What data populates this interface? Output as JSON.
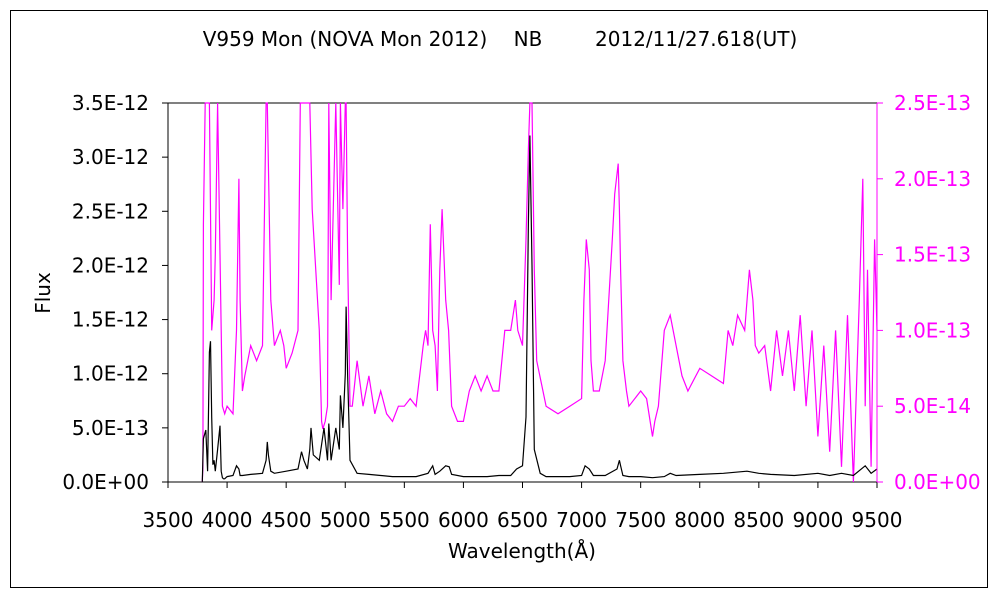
{
  "chart_data": {
    "type": "line",
    "title": "V959 Mon (NOVA Mon 2012)　 NB　 　 2012/11/27.618(UT)",
    "xlabel": "Wavelength(Å)",
    "ylabel": "Flux",
    "xlim": [
      3500,
      9500
    ],
    "ylim_left": [
      0,
      3.5e-12
    ],
    "ylim_right": [
      0,
      2.5e-13
    ],
    "x_ticks": [
      "3500",
      "4000",
      "4500",
      "5000",
      "5500",
      "6000",
      "6500",
      "7000",
      "7500",
      "8000",
      "8500",
      "9000",
      "9500"
    ],
    "y_ticks_left": [
      "0.0E+00",
      "5.0E-13",
      "1.0E-12",
      "1.5E-12",
      "2.0E-12",
      "2.5E-12",
      "3.0E-12",
      "3.5E-12"
    ],
    "y_ticks_right": [
      "0.0E+00",
      "5.0E-14",
      "1.0E-13",
      "1.5E-13",
      "2.0E-13",
      "2.5E-13"
    ],
    "grid": false,
    "legend": "none",
    "series": [
      {
        "axis": "left",
        "color": "#000000",
        "x": [
          3790,
          3800,
          3820,
          3835,
          3850,
          3860,
          3870,
          3880,
          3890,
          3900,
          3920,
          3940,
          3950,
          3960,
          3970,
          3980,
          4000,
          4050,
          4080,
          4100,
          4110,
          4130,
          4200,
          4300,
          4330,
          4340,
          4350,
          4370,
          4400,
          4500,
          4600,
          4630,
          4650,
          4680,
          4700,
          4710,
          4730,
          4780,
          4820,
          4850,
          4861,
          4880,
          4920,
          4950,
          4959,
          4980,
          5000,
          5007,
          5020,
          5040,
          5100,
          5200,
          5300,
          5400,
          5500,
          5600,
          5700,
          5740,
          5760,
          5800,
          5850,
          5880,
          5900,
          6000,
          6100,
          6200,
          6300,
          6400,
          6450,
          6500,
          6530,
          6550,
          6563,
          6580,
          6600,
          6650,
          6700,
          6800,
          6900,
          7000,
          7030,
          7065,
          7100,
          7200,
          7300,
          7320,
          7330,
          7350,
          7400,
          7500,
          7600,
          7700,
          7750,
          7800,
          8000,
          8200,
          8400,
          8500,
          8600,
          8800,
          9000,
          9100,
          9200,
          9300,
          9400,
          9450,
          9500
        ],
        "y": [
          0,
          4e-13,
          4.8e-13,
          1e-13,
          1.2e-12,
          1.3e-12,
          6e-13,
          1.6e-13,
          2e-13,
          1e-13,
          3e-13,
          5.2e-13,
          1e-13,
          4e-14,
          3e-14,
          3e-14,
          5e-14,
          6e-14,
          1.5e-13,
          1.2e-13,
          6e-14,
          6e-14,
          7e-14,
          8e-14,
          2e-13,
          3.7e-13,
          2.5e-13,
          1e-13,
          8e-14,
          1e-13,
          1.2e-13,
          2.8e-13,
          2e-13,
          1.2e-13,
          3e-13,
          5e-13,
          2.5e-13,
          2e-13,
          5e-13,
          2e-13,
          5.4e-13,
          2e-13,
          5e-13,
          3e-13,
          8e-13,
          5e-13,
          1e-12,
          1.62e-12,
          1e-12,
          2e-13,
          8e-14,
          7e-14,
          6e-14,
          5e-14,
          5e-14,
          5e-14,
          8e-14,
          1.5e-13,
          7e-14,
          1e-13,
          1.5e-13,
          1.4e-13,
          7e-14,
          5e-14,
          5e-14,
          5e-14,
          6e-14,
          6e-14,
          1.2e-13,
          1.5e-13,
          6e-13,
          2.4e-12,
          3.2e-12,
          2e-12,
          3e-13,
          8e-14,
          5e-14,
          5e-14,
          5e-14,
          6e-14,
          1.5e-13,
          1.2e-13,
          6e-14,
          6e-14,
          1.2e-13,
          2e-13,
          1.5e-13,
          6e-14,
          5e-14,
          5e-14,
          4e-14,
          5e-14,
          8e-14,
          6e-14,
          7e-14,
          8e-14,
          1e-13,
          8e-14,
          7e-14,
          6e-14,
          8e-14,
          6e-14,
          8e-14,
          6e-14,
          1.5e-13,
          8e-14,
          1.2e-13
        ]
      },
      {
        "axis": "right",
        "color": "#ff00ff",
        "x": [
          3790,
          3795,
          3800,
          3815,
          3830,
          3850,
          3870,
          3890,
          3900,
          3920,
          3950,
          3960,
          3980,
          4000,
          4050,
          4080,
          4100,
          4110,
          4130,
          4150,
          4200,
          4250,
          4300,
          4330,
          4340,
          4370,
          4400,
          4450,
          4480,
          4500,
          4550,
          4600,
          4620,
          4650,
          4700,
          4720,
          4780,
          4800,
          4810,
          4830,
          4850,
          4861,
          4880,
          4920,
          4950,
          4959,
          4980,
          5000,
          5007,
          5020,
          5040,
          5060,
          5100,
          5150,
          5200,
          5250,
          5300,
          5350,
          5400,
          5450,
          5500,
          5550,
          5600,
          5660,
          5680,
          5700,
          5720,
          5740,
          5760,
          5780,
          5800,
          5820,
          5850,
          5875,
          5890,
          5900,
          5950,
          6000,
          6050,
          6100,
          6150,
          6200,
          6250,
          6300,
          6350,
          6400,
          6440,
          6460,
          6500,
          6530,
          6550,
          6563,
          6580,
          6600,
          6620,
          6700,
          6800,
          6900,
          7000,
          7020,
          7040,
          7065,
          7080,
          7100,
          7150,
          7200,
          7260,
          7280,
          7310,
          7320,
          7330,
          7350,
          7380,
          7400,
          7500,
          7550,
          7600,
          7620,
          7650,
          7700,
          7750,
          7800,
          7850,
          7900,
          8000,
          8100,
          8200,
          8240,
          8280,
          8320,
          8380,
          8420,
          8450,
          8470,
          8500,
          8550,
          8600,
          8650,
          8700,
          8750,
          8800,
          8850,
          8900,
          8950,
          9000,
          9050,
          9100,
          9150,
          9200,
          9250,
          9300,
          9350,
          9380,
          9400,
          9420,
          9450,
          9480,
          9500
        ],
        "y": [
          0,
          1e-14,
          1.7e-13,
          2.5e-13,
          2.5e-13,
          2.5e-13,
          1e-13,
          1.2e-13,
          1.5e-13,
          2.5e-13,
          1e-13,
          5e-14,
          4.5e-14,
          5e-14,
          4.5e-14,
          1e-13,
          2e-13,
          1.2e-13,
          6e-14,
          7e-14,
          9e-14,
          8e-14,
          9e-14,
          2.5e-13,
          2.5e-13,
          1.2e-13,
          9e-14,
          1e-13,
          9e-14,
          7.5e-14,
          8.5e-14,
          1e-13,
          2.5e-13,
          2.5e-13,
          2.5e-13,
          1.8e-13,
          1e-13,
          4e-14,
          3.5e-14,
          4e-14,
          5e-14,
          2.5e-13,
          1.2e-13,
          2.5e-13,
          1.3e-13,
          2.5e-13,
          1.8e-13,
          2.5e-13,
          2.5e-13,
          1.5e-13,
          5e-14,
          5e-14,
          8e-14,
          5e-14,
          7e-14,
          4.5e-14,
          6e-14,
          4.5e-14,
          4e-14,
          5e-14,
          5e-14,
          5.5e-14,
          5e-14,
          9e-14,
          1e-13,
          9e-14,
          1.7e-13,
          1e-13,
          9e-14,
          6e-14,
          1.4e-13,
          1.8e-13,
          1.2e-13,
          1e-13,
          7e-14,
          5e-14,
          4e-14,
          4e-14,
          6e-14,
          7e-14,
          6e-14,
          7e-14,
          6e-14,
          6e-14,
          1e-13,
          1e-13,
          1.2e-13,
          1e-13,
          9e-14,
          1.6e-13,
          2.2e-13,
          2.5e-13,
          2.5e-13,
          1.4e-13,
          8e-14,
          5e-14,
          4.5e-14,
          5e-14,
          5.5e-14,
          1.2e-13,
          1.6e-13,
          1.4e-13,
          8e-14,
          6e-14,
          6e-14,
          8e-14,
          1.6e-13,
          1.9e-13,
          2.1e-13,
          1.8e-13,
          1.4e-13,
          8e-14,
          6e-14,
          5e-14,
          6e-14,
          5.5e-14,
          3e-14,
          4e-14,
          5e-14,
          1e-13,
          1.1e-13,
          9e-14,
          7e-14,
          6e-14,
          7.5e-14,
          7e-14,
          6.5e-14,
          1e-13,
          9e-14,
          1.1e-13,
          1e-13,
          1.4e-13,
          1.2e-13,
          9e-14,
          8.5e-14,
          9e-14,
          6e-14,
          1e-13,
          7e-14,
          1e-13,
          6e-14,
          1.1e-13,
          5e-14,
          1e-13,
          3e-14,
          9e-14,
          2e-14,
          1e-13,
          1e-14,
          1.1e-13,
          0,
          1.2e-13,
          2e-13,
          5e-14,
          1.4e-13,
          1e-14,
          1.6e-13,
          1e-13
        ]
      }
    ]
  }
}
